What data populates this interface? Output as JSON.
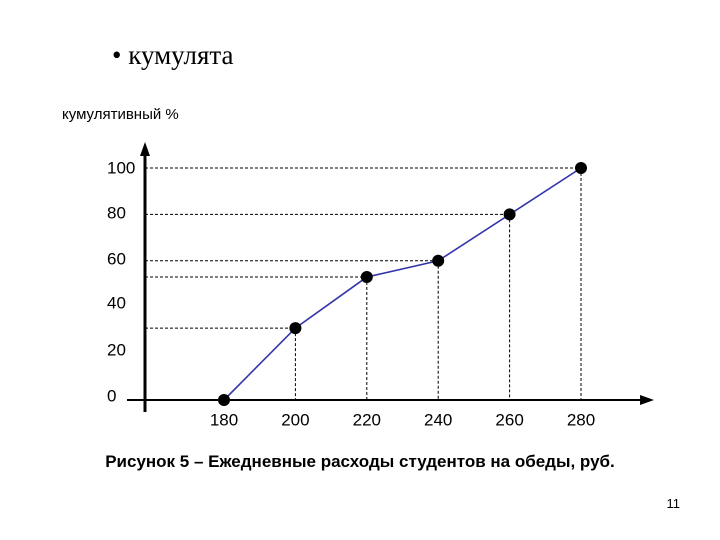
{
  "slide": {
    "heading": "• кумулята",
    "caption": "Рисунок 5 – Ежедневные расходы студентов на обеды, руб.",
    "page_number": "11"
  },
  "chart_data": {
    "type": "line",
    "title": "",
    "xlabel": "",
    "ylabel": "кумулятивный %",
    "x_ticks": [
      "180",
      "200",
      "220",
      "240",
      "260",
      "280"
    ],
    "y_ticks": [
      "0",
      "20",
      "40",
      "60",
      "80",
      "100"
    ],
    "ylim": [
      0,
      100
    ],
    "x": [
      180,
      200,
      220,
      240,
      260,
      280
    ],
    "y": [
      0,
      31,
      53,
      60,
      80,
      100
    ],
    "line_color": "#3333aa",
    "marker_color": "#000000",
    "guide_lines": "dashed",
    "grid": false,
    "legend": "none"
  }
}
